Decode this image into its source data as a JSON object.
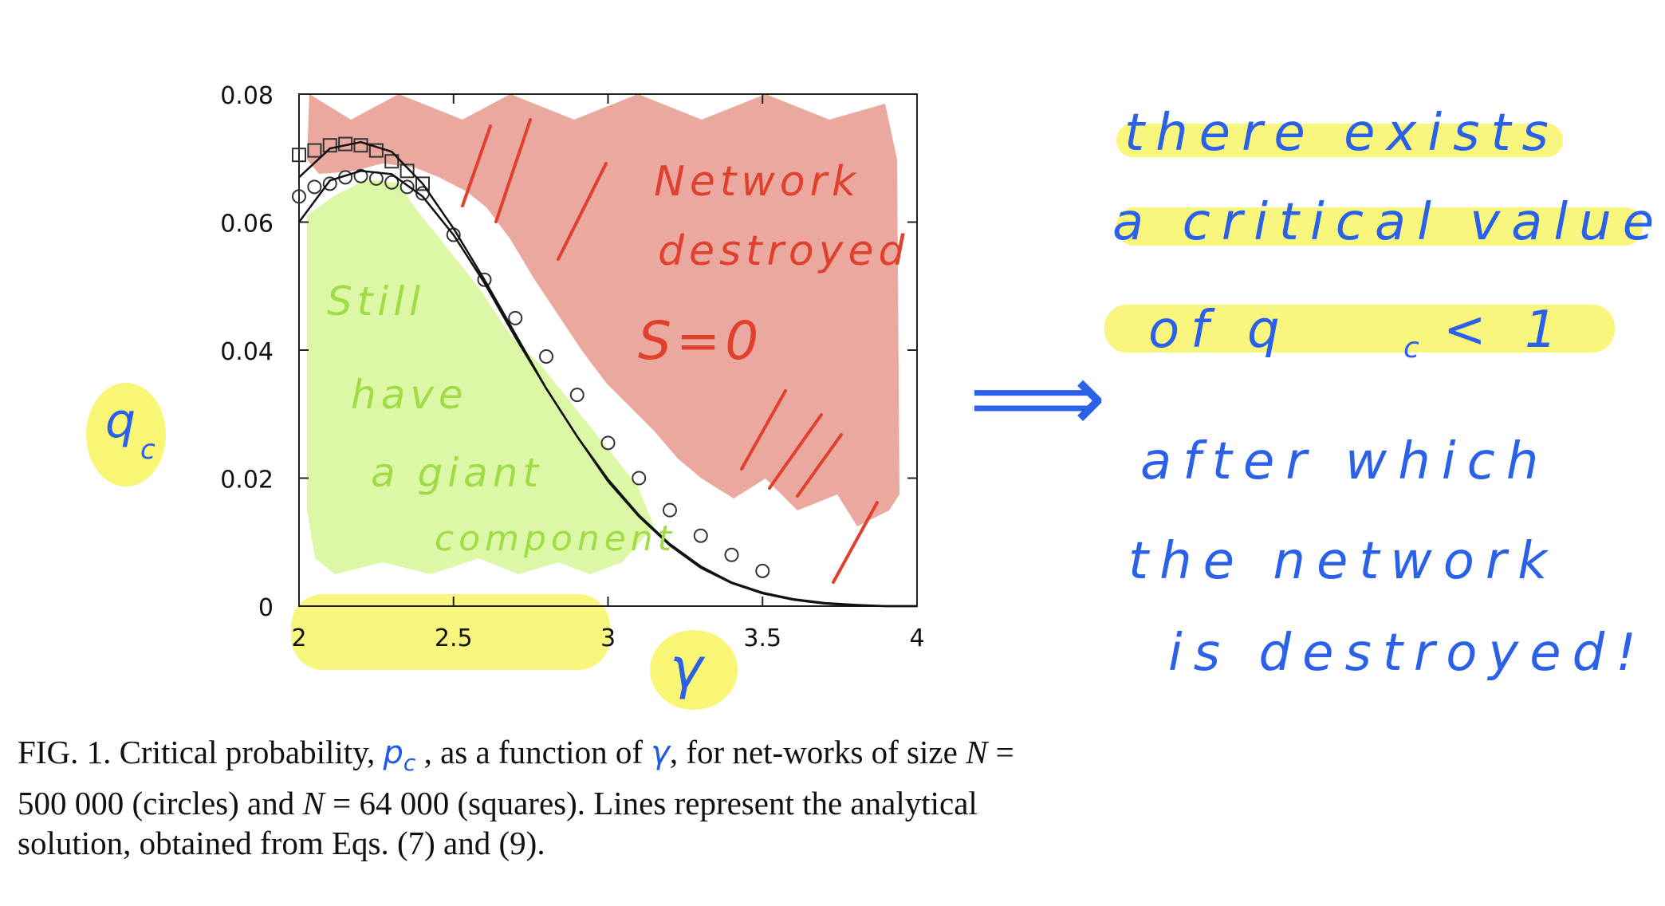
{
  "chart_data": {
    "type": "scatter",
    "title": "",
    "xlabel": "γ",
    "ylabel": "q_c",
    "xlim": [
      2,
      4
    ],
    "ylim": [
      0,
      0.08
    ],
    "x_ticks": [
      "2",
      "2.5",
      "3",
      "3.5",
      "4"
    ],
    "y_ticks": [
      "0",
      "0.02",
      "0.04",
      "0.06",
      "0.08"
    ],
    "grid": false,
    "series": [
      {
        "marker": "circle",
        "x": [
          2.0,
          2.05,
          2.1,
          2.15,
          2.2,
          2.25,
          2.3,
          2.35,
          2.4,
          2.5,
          2.6,
          2.7,
          2.8,
          2.9,
          3.0,
          3.1,
          3.2,
          3.3,
          3.4,
          3.5
        ],
        "y": [
          0.064,
          0.0655,
          0.066,
          0.067,
          0.0672,
          0.0668,
          0.0662,
          0.0655,
          0.0645,
          0.058,
          0.051,
          0.045,
          0.039,
          0.033,
          0.0255,
          0.02,
          0.015,
          0.011,
          0.008,
          0.0055
        ]
      },
      {
        "marker": "square",
        "x": [
          2.0,
          2.05,
          2.1,
          2.15,
          2.2,
          2.25,
          2.3,
          2.35,
          2.4
        ],
        "y": [
          0.0705,
          0.0712,
          0.072,
          0.0722,
          0.072,
          0.0712,
          0.0695,
          0.068,
          0.066
        ]
      },
      {
        "marker": "line",
        "x": [
          2.0,
          2.1,
          2.2,
          2.3,
          2.4,
          2.5,
          2.6,
          2.7,
          2.8,
          2.9,
          3.0,
          3.1,
          3.2,
          3.3,
          3.4,
          3.5,
          3.6,
          3.7,
          3.8,
          3.9,
          4.0
        ],
        "y": [
          0.067,
          0.0715,
          0.0725,
          0.071,
          0.066,
          0.059,
          0.051,
          0.0425,
          0.034,
          0.0265,
          0.0195,
          0.014,
          0.0095,
          0.006,
          0.0036,
          0.002,
          0.001,
          0.0004,
          0.0001,
          0.0,
          0.0
        ]
      },
      {
        "marker": "line",
        "x": [
          2.0,
          2.1,
          2.2,
          2.3,
          2.4,
          2.5,
          2.6,
          2.7,
          2.8,
          2.9,
          3.0,
          3.1,
          3.2,
          3.3,
          3.4,
          3.5,
          3.6,
          3.7,
          3.8,
          3.9,
          4.0
        ],
        "y": [
          0.06,
          0.0665,
          0.068,
          0.0675,
          0.064,
          0.058,
          0.0505,
          0.042,
          0.034,
          0.0265,
          0.0198,
          0.0142,
          0.0097,
          0.0062,
          0.0037,
          0.0021,
          0.0011,
          0.0005,
          0.0002,
          0.0,
          0.0
        ]
      }
    ]
  },
  "annotations": {
    "red_region": [
      "Network",
      "destroyed",
      "S=0"
    ],
    "green_region": [
      "Still",
      "have",
      "a giant",
      "component"
    ],
    "ylabel_hw": "q",
    "ylabel_sub": "c",
    "xlabel_hw": "γ",
    "arrow": "⟹",
    "notes": [
      "there exists",
      "a critical value",
      "of q",
      "c",
      "< 1",
      "after which",
      "the network",
      "is destroyed!"
    ]
  },
  "caption": {
    "part1": "FIG. 1.   Critical probability, ",
    "hw_p": "p",
    "hw_c": "c",
    "part2": " , as a function of ",
    "hw_gamma": "γ",
    "part3": ", for net-works of size ",
    "n1_var": "N",
    "part4": " = 500 000 (circles) and ",
    "n2_var": "N",
    "part5": " = 64 000 (squares). Lines represent the analytical solution, obtained from Eqs. (7) and (9)."
  },
  "colors": {
    "red_fill": "#e8a197",
    "green_fill": "#daf7a0",
    "yellow_highlight": "#f7f45c",
    "blue_ink": "#2a61e8",
    "red_ink": "#e0412e"
  }
}
